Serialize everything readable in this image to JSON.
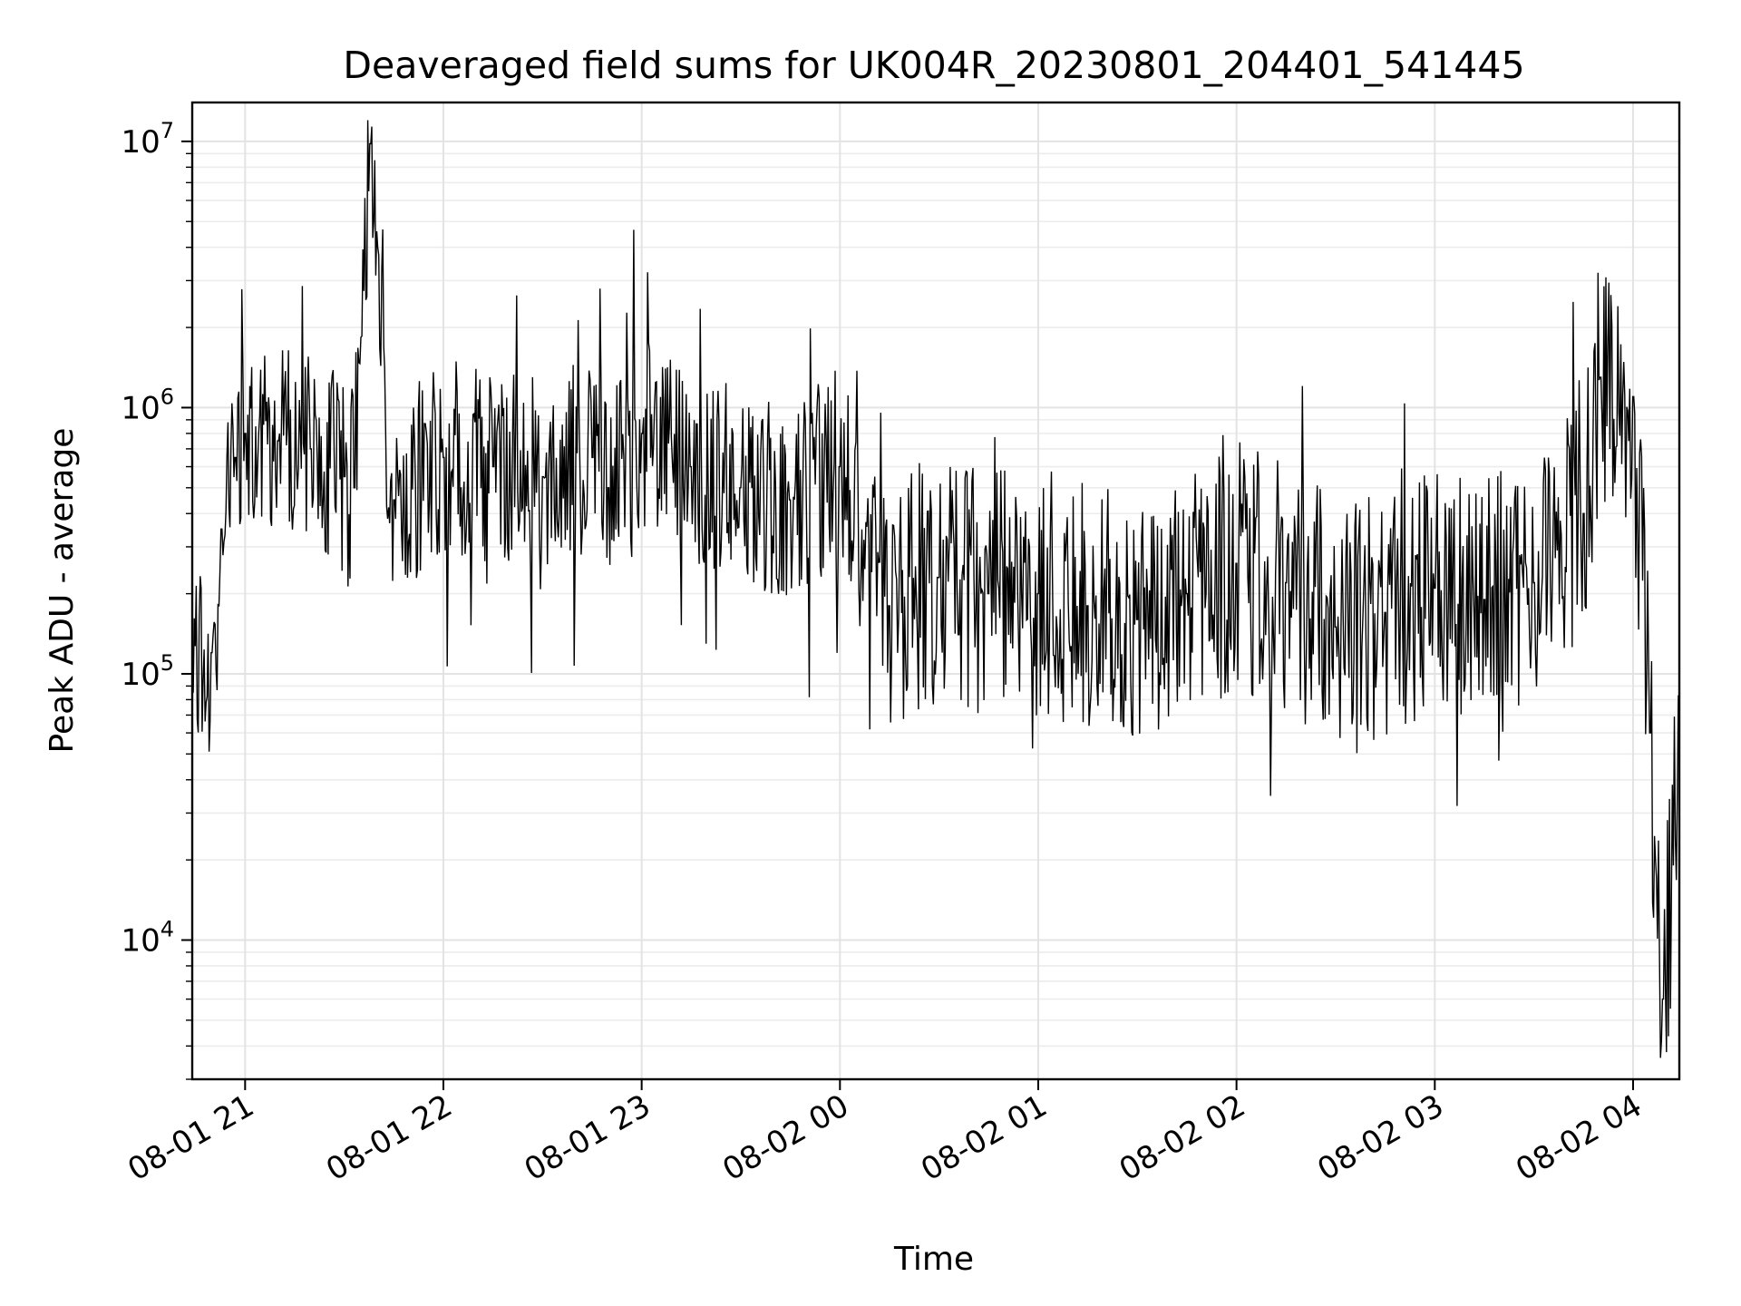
{
  "chart_data": {
    "type": "line",
    "title": "Deaveraged field sums for UK004R_20230801_204401_541445",
    "xlabel": "Time",
    "ylabel": "Peak ADU - average",
    "yscale": "log",
    "ylim": [
      3000,
      14000000
    ],
    "xlim": [
      "2023-08-01 20:44",
      "2023-08-02 04:14"
    ],
    "x_ticks": [
      {
        "label": "08-01 21",
        "value": "2023-08-01 21:00"
      },
      {
        "label": "08-01 22",
        "value": "2023-08-01 22:00"
      },
      {
        "label": "08-01 23",
        "value": "2023-08-01 23:00"
      },
      {
        "label": "08-02 00",
        "value": "2023-08-02 00:00"
      },
      {
        "label": "08-02 01",
        "value": "2023-08-02 01:00"
      },
      {
        "label": "08-02 02",
        "value": "2023-08-02 02:00"
      },
      {
        "label": "08-02 03",
        "value": "2023-08-02 03:00"
      },
      {
        "label": "08-02 04",
        "value": "2023-08-02 04:00"
      }
    ],
    "y_ticks": [
      {
        "base": "10",
        "exp": "4",
        "value": 10000
      },
      {
        "base": "10",
        "exp": "5",
        "value": 100000
      },
      {
        "base": "10",
        "exp": "6",
        "value": 1000000
      },
      {
        "base": "10",
        "exp": "7",
        "value": 10000000
      }
    ],
    "grid": true,
    "line_color": "#000000",
    "series": [
      {
        "x": [
          "2023-08-01 20:44",
          "2023-08-01 20:50",
          "2023-08-01 20:53",
          "2023-08-01 20:57",
          "2023-08-01 21:00",
          "2023-08-01 21:10",
          "2023-08-01 21:20",
          "2023-08-01 21:30",
          "2023-08-01 21:33",
          "2023-08-01 21:38",
          "2023-08-01 21:45",
          "2023-08-01 22:00",
          "2023-08-01 22:15",
          "2023-08-01 22:30",
          "2023-08-01 22:45",
          "2023-08-01 22:50",
          "2023-08-01 23:00",
          "2023-08-01 23:15",
          "2023-08-01 23:30",
          "2023-08-01 23:45",
          "2023-08-02 00:00",
          "2023-08-02 00:15",
          "2023-08-02 00:30",
          "2023-08-02 00:45",
          "2023-08-02 01:00",
          "2023-08-02 01:15",
          "2023-08-02 01:30",
          "2023-08-02 01:45",
          "2023-08-02 02:00",
          "2023-08-02 02:15",
          "2023-08-02 02:30",
          "2023-08-02 02:45",
          "2023-08-02 03:00",
          "2023-08-02 03:15",
          "2023-08-02 03:30",
          "2023-08-02 03:45",
          "2023-08-02 03:50",
          "2023-08-02 04:00",
          "2023-08-02 04:05",
          "2023-08-02 04:09",
          "2023-08-02 04:14"
        ],
        "y": [
          100000,
          120000,
          350000,
          650000,
          800000,
          750000,
          700000,
          550000,
          500000,
          9800000,
          450000,
          650000,
          600000,
          550000,
          650000,
          500000,
          800000,
          600000,
          500000,
          450000,
          600000,
          180000,
          230000,
          200000,
          200000,
          180000,
          160000,
          200000,
          260000,
          220000,
          150000,
          170000,
          210000,
          190000,
          220000,
          400000,
          1300000,
          1100000,
          60000,
          6000,
          50000
        ]
      }
    ]
  }
}
